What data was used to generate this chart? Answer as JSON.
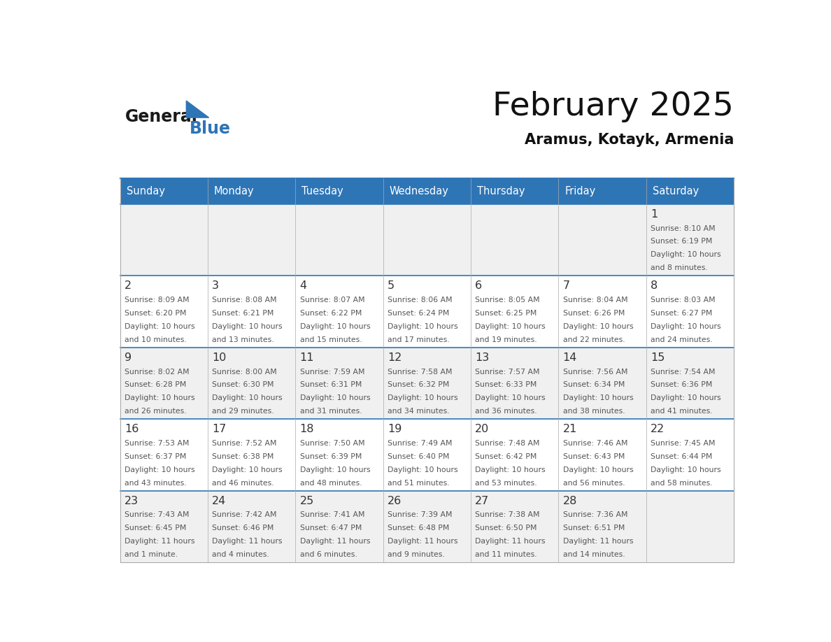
{
  "title": "February 2025",
  "subtitle": "Aramus, Kotayk, Armenia",
  "header_color": "#2E75B6",
  "header_text_color": "#FFFFFF",
  "day_names": [
    "Sunday",
    "Monday",
    "Tuesday",
    "Wednesday",
    "Thursday",
    "Friday",
    "Saturday"
  ],
  "days": [
    {
      "day": 1,
      "col": 6,
      "row": 0,
      "sunrise": "8:10 AM",
      "sunset": "6:19 PM",
      "daylight": "10 hours and 8 minutes."
    },
    {
      "day": 2,
      "col": 0,
      "row": 1,
      "sunrise": "8:09 AM",
      "sunset": "6:20 PM",
      "daylight": "10 hours and 10 minutes."
    },
    {
      "day": 3,
      "col": 1,
      "row": 1,
      "sunrise": "8:08 AM",
      "sunset": "6:21 PM",
      "daylight": "10 hours and 13 minutes."
    },
    {
      "day": 4,
      "col": 2,
      "row": 1,
      "sunrise": "8:07 AM",
      "sunset": "6:22 PM",
      "daylight": "10 hours and 15 minutes."
    },
    {
      "day": 5,
      "col": 3,
      "row": 1,
      "sunrise": "8:06 AM",
      "sunset": "6:24 PM",
      "daylight": "10 hours and 17 minutes."
    },
    {
      "day": 6,
      "col": 4,
      "row": 1,
      "sunrise": "8:05 AM",
      "sunset": "6:25 PM",
      "daylight": "10 hours and 19 minutes."
    },
    {
      "day": 7,
      "col": 5,
      "row": 1,
      "sunrise": "8:04 AM",
      "sunset": "6:26 PM",
      "daylight": "10 hours and 22 minutes."
    },
    {
      "day": 8,
      "col": 6,
      "row": 1,
      "sunrise": "8:03 AM",
      "sunset": "6:27 PM",
      "daylight": "10 hours and 24 minutes."
    },
    {
      "day": 9,
      "col": 0,
      "row": 2,
      "sunrise": "8:02 AM",
      "sunset": "6:28 PM",
      "daylight": "10 hours and 26 minutes."
    },
    {
      "day": 10,
      "col": 1,
      "row": 2,
      "sunrise": "8:00 AM",
      "sunset": "6:30 PM",
      "daylight": "10 hours and 29 minutes."
    },
    {
      "day": 11,
      "col": 2,
      "row": 2,
      "sunrise": "7:59 AM",
      "sunset": "6:31 PM",
      "daylight": "10 hours and 31 minutes."
    },
    {
      "day": 12,
      "col": 3,
      "row": 2,
      "sunrise": "7:58 AM",
      "sunset": "6:32 PM",
      "daylight": "10 hours and 34 minutes."
    },
    {
      "day": 13,
      "col": 4,
      "row": 2,
      "sunrise": "7:57 AM",
      "sunset": "6:33 PM",
      "daylight": "10 hours and 36 minutes."
    },
    {
      "day": 14,
      "col": 5,
      "row": 2,
      "sunrise": "7:56 AM",
      "sunset": "6:34 PM",
      "daylight": "10 hours and 38 minutes."
    },
    {
      "day": 15,
      "col": 6,
      "row": 2,
      "sunrise": "7:54 AM",
      "sunset": "6:36 PM",
      "daylight": "10 hours and 41 minutes."
    },
    {
      "day": 16,
      "col": 0,
      "row": 3,
      "sunrise": "7:53 AM",
      "sunset": "6:37 PM",
      "daylight": "10 hours and 43 minutes."
    },
    {
      "day": 17,
      "col": 1,
      "row": 3,
      "sunrise": "7:52 AM",
      "sunset": "6:38 PM",
      "daylight": "10 hours and 46 minutes."
    },
    {
      "day": 18,
      "col": 2,
      "row": 3,
      "sunrise": "7:50 AM",
      "sunset": "6:39 PM",
      "daylight": "10 hours and 48 minutes."
    },
    {
      "day": 19,
      "col": 3,
      "row": 3,
      "sunrise": "7:49 AM",
      "sunset": "6:40 PM",
      "daylight": "10 hours and 51 minutes."
    },
    {
      "day": 20,
      "col": 4,
      "row": 3,
      "sunrise": "7:48 AM",
      "sunset": "6:42 PM",
      "daylight": "10 hours and 53 minutes."
    },
    {
      "day": 21,
      "col": 5,
      "row": 3,
      "sunrise": "7:46 AM",
      "sunset": "6:43 PM",
      "daylight": "10 hours and 56 minutes."
    },
    {
      "day": 22,
      "col": 6,
      "row": 3,
      "sunrise": "7:45 AM",
      "sunset": "6:44 PM",
      "daylight": "10 hours and 58 minutes."
    },
    {
      "day": 23,
      "col": 0,
      "row": 4,
      "sunrise": "7:43 AM",
      "sunset": "6:45 PM",
      "daylight": "11 hours and 1 minute."
    },
    {
      "day": 24,
      "col": 1,
      "row": 4,
      "sunrise": "7:42 AM",
      "sunset": "6:46 PM",
      "daylight": "11 hours and 4 minutes."
    },
    {
      "day": 25,
      "col": 2,
      "row": 4,
      "sunrise": "7:41 AM",
      "sunset": "6:47 PM",
      "daylight": "11 hours and 6 minutes."
    },
    {
      "day": 26,
      "col": 3,
      "row": 4,
      "sunrise": "7:39 AM",
      "sunset": "6:48 PM",
      "daylight": "11 hours and 9 minutes."
    },
    {
      "day": 27,
      "col": 4,
      "row": 4,
      "sunrise": "7:38 AM",
      "sunset": "6:50 PM",
      "daylight": "11 hours and 11 minutes."
    },
    {
      "day": 28,
      "col": 5,
      "row": 4,
      "sunrise": "7:36 AM",
      "sunset": "6:51 PM",
      "daylight": "11 hours and 14 minutes."
    }
  ],
  "num_rows": 5,
  "num_cols": 7,
  "cell_bg_white": "#FFFFFF",
  "cell_bg_gray": "#F0F0F0",
  "border_color": "#AAAAAA",
  "divider_color": "#2E75B6",
  "day_num_color": "#333333",
  "text_color": "#555555",
  "logo_general_color": "#1A1A1A",
  "logo_blue_color": "#2E75B6"
}
